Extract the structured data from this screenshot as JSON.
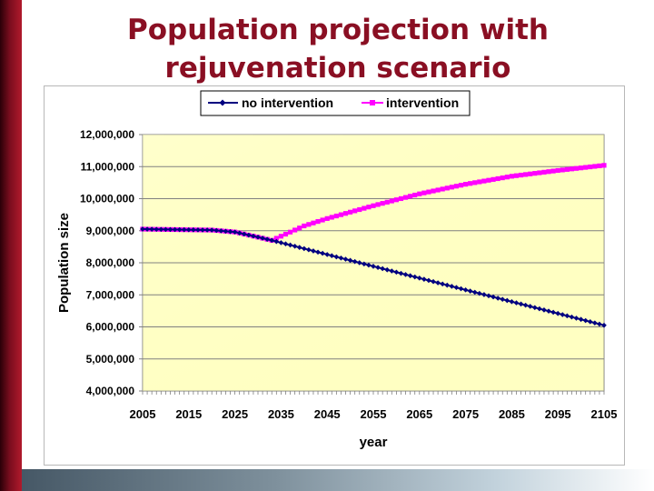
{
  "slide": {
    "title_line1": "Population projection with",
    "title_line2": "rejuvenation scenario"
  },
  "colors": {
    "title": "#8a0f23",
    "plot_bg": "#ffffcc",
    "series_no_intervention": "#000080",
    "series_intervention": "#ff00ff"
  },
  "chart_data": {
    "type": "line",
    "title": "",
    "xlabel": "year",
    "ylabel": "Population size",
    "xlim": [
      2005,
      2105
    ],
    "ylim": [
      4000000,
      12000000
    ],
    "y_ticks": [
      "4,000,000",
      "5,000,000",
      "6,000,000",
      "7,000,000",
      "8,000,000",
      "9,000,000",
      "10,000,000",
      "11,000,000",
      "12,000,000"
    ],
    "x_ticks": [
      "2005",
      "2015",
      "2025",
      "2035",
      "2045",
      "2055",
      "2065",
      "2075",
      "2085",
      "2095",
      "2105"
    ],
    "grid": true,
    "legend_position": "top-center",
    "series": [
      {
        "name": "no intervention",
        "marker": "diamond",
        "points": [
          [
            2005,
            9050000
          ],
          [
            2020,
            9020000
          ],
          [
            2025,
            8960000
          ],
          [
            2030,
            8800000
          ],
          [
            2033,
            8700000
          ],
          [
            2105,
            6050000
          ]
        ]
      },
      {
        "name": "intervention",
        "marker": "square",
        "points": [
          [
            2005,
            9050000
          ],
          [
            2020,
            9020000
          ],
          [
            2025,
            8960000
          ],
          [
            2030,
            8800000
          ],
          [
            2033,
            8700000
          ],
          [
            2040,
            9150000
          ],
          [
            2045,
            9380000
          ],
          [
            2055,
            9780000
          ],
          [
            2065,
            10150000
          ],
          [
            2075,
            10450000
          ],
          [
            2085,
            10700000
          ],
          [
            2095,
            10880000
          ],
          [
            2105,
            11040000
          ]
        ]
      }
    ]
  }
}
